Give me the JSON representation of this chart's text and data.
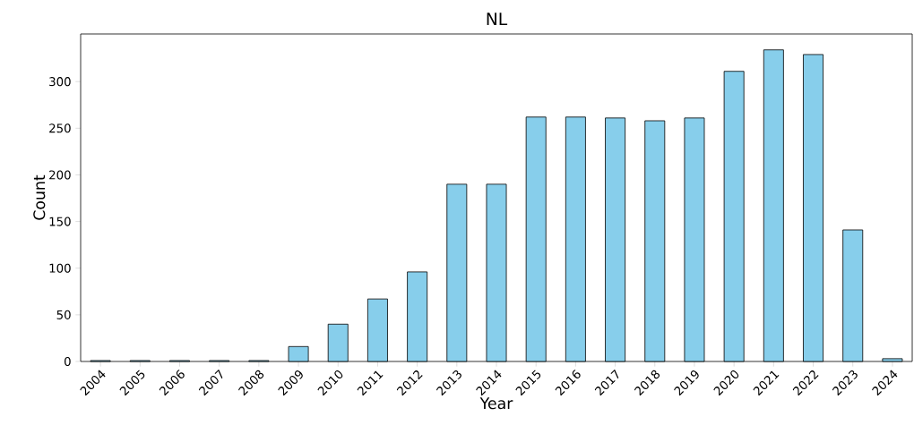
{
  "chart_data": {
    "type": "bar",
    "title": "NL",
    "xlabel": "Year",
    "ylabel": "Count",
    "categories": [
      "2004",
      "2005",
      "2006",
      "2007",
      "2008",
      "2009",
      "2010",
      "2011",
      "2012",
      "2013",
      "2014",
      "2015",
      "2016",
      "2017",
      "2018",
      "2019",
      "2020",
      "2021",
      "2022",
      "2023",
      "2024"
    ],
    "values": [
      1,
      1,
      1,
      1,
      1,
      16,
      40,
      67,
      96,
      190,
      190,
      262,
      262,
      261,
      258,
      261,
      311,
      334,
      329,
      141,
      3
    ],
    "color": "#87ceeb",
    "ylim": [
      0,
      351
    ],
    "yticks": [
      0,
      50,
      100,
      150,
      200,
      250,
      300
    ],
    "grid": false
  }
}
